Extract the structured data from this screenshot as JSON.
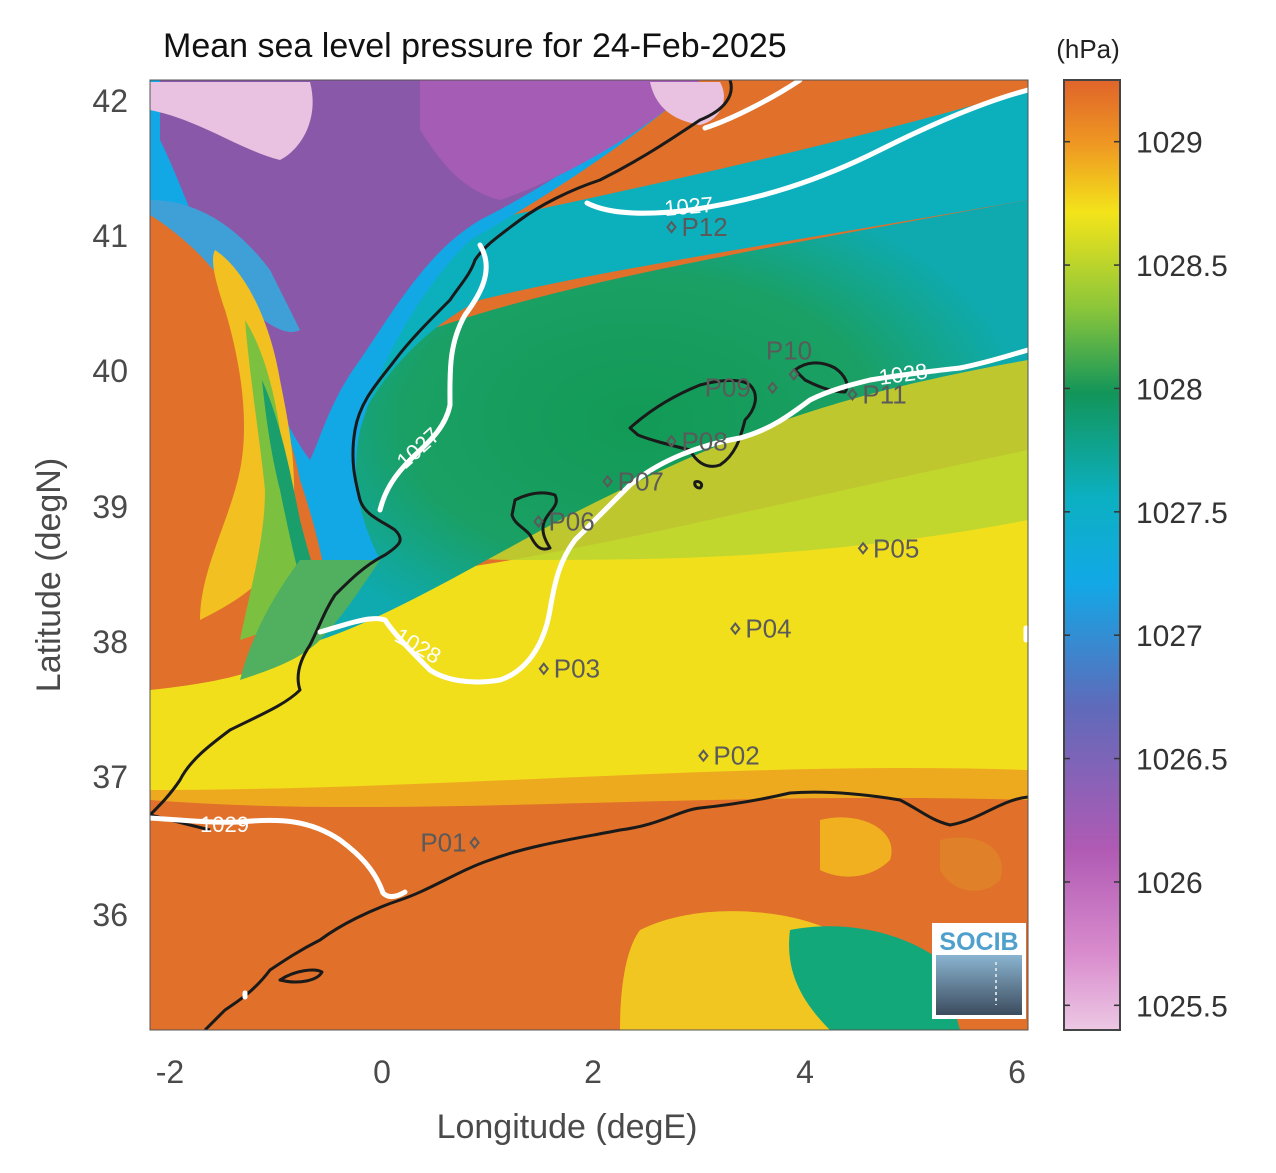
{
  "title": "Mean sea level pressure for 24-Feb-2025",
  "xlabel": "Longitude (degE)",
  "ylabel": "Latitude (degN)",
  "colorbar": {
    "unit": "(hPa)",
    "ticks": [
      "1029",
      "1028.5",
      "1028",
      "1027.5",
      "1027",
      "1026.5",
      "1026",
      "1025.5"
    ],
    "tick_values": [
      1029,
      1028.5,
      1028,
      1027.5,
      1027,
      1026.5,
      1026,
      1025.5
    ],
    "range": [
      1025.4,
      1029.25
    ]
  },
  "x_ticks": [
    "-2",
    "0",
    "2",
    "4",
    "6"
  ],
  "y_ticks": [
    "42",
    "41",
    "40",
    "39",
    "38",
    "37",
    "36"
  ],
  "chart_data": {
    "type": "heatmap",
    "title": "Mean sea level pressure for 24-Feb-2025",
    "xlabel": "Longitude (degE)",
    "ylabel": "Latitude (degN)",
    "xlim": [
      -2.2,
      6.05
    ],
    "ylim": [
      35.1,
      42.2
    ],
    "contours": [
      "1027",
      "1027",
      "1028",
      "1028",
      "1029"
    ],
    "points": [
      {
        "name": "P01",
        "lon": 0.85,
        "lat": 36.5
      },
      {
        "name": "P02",
        "lon": 3.0,
        "lat": 37.15
      },
      {
        "name": "P03",
        "lon": 1.5,
        "lat": 37.8
      },
      {
        "name": "P04",
        "lon": 3.3,
        "lat": 38.1
      },
      {
        "name": "P05",
        "lon": 4.5,
        "lat": 38.7
      },
      {
        "name": "P06",
        "lon": 1.45,
        "lat": 38.9
      },
      {
        "name": "P07",
        "lon": 2.1,
        "lat": 39.2
      },
      {
        "name": "P08",
        "lon": 2.7,
        "lat": 39.5
      },
      {
        "name": "P09",
        "lon": 3.65,
        "lat": 39.9
      },
      {
        "name": "P10",
        "lon": 3.85,
        "lat": 40.0
      },
      {
        "name": "P11",
        "lon": 4.4,
        "lat": 39.85
      },
      {
        "name": "P12",
        "lon": 2.7,
        "lat": 41.1
      }
    ]
  },
  "logo": "SOCIB",
  "colors": {
    "orange": "#e0702a",
    "yellow": "#f1e21a",
    "green": "#12995a",
    "cyan": "#0ab0c8",
    "blue": "#10a8e6",
    "purple": "#8a58a6",
    "magenta": "#c05ab8",
    "pink": "#e8c2e0"
  }
}
